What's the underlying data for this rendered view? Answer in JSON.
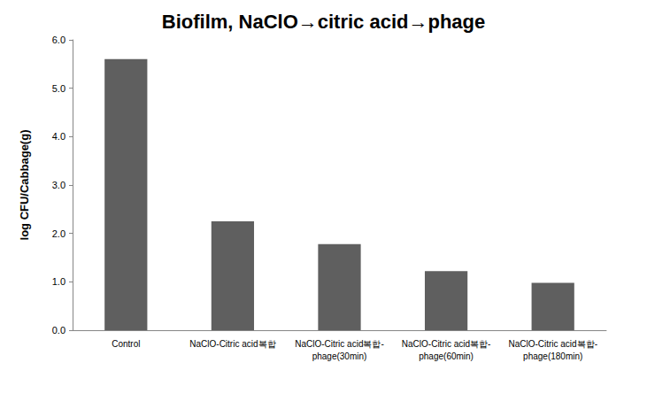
{
  "chart_data": {
    "type": "bar",
    "title": "Biofilm, NaClO→citric acid→phage",
    "y_label": "log CFU/Cabbage(g)",
    "categories": [
      "Control",
      "NaClO-Citric acid복합",
      "NaClO-Citric acid복합-phage(30min)",
      "NaClO-Citric acid복합-phage(60min)",
      "NaClO-Citric acid복합-phage(180min)"
    ],
    "values": [
      5.6,
      2.25,
      1.78,
      1.22,
      0.98
    ],
    "color": "#5f5f5f",
    "ylim": [
      0,
      6
    ],
    "yticks": [
      {
        "value": 0,
        "label": "0.0"
      },
      {
        "value": 1,
        "label": "1.0"
      },
      {
        "value": 2,
        "label": "2.0"
      },
      {
        "value": 3,
        "label": "3.0"
      },
      {
        "value": 4,
        "label": "4.0"
      },
      {
        "value": 5,
        "label": "5.0"
      },
      {
        "value": 6,
        "label": "6.0"
      }
    ],
    "grid": false
  }
}
